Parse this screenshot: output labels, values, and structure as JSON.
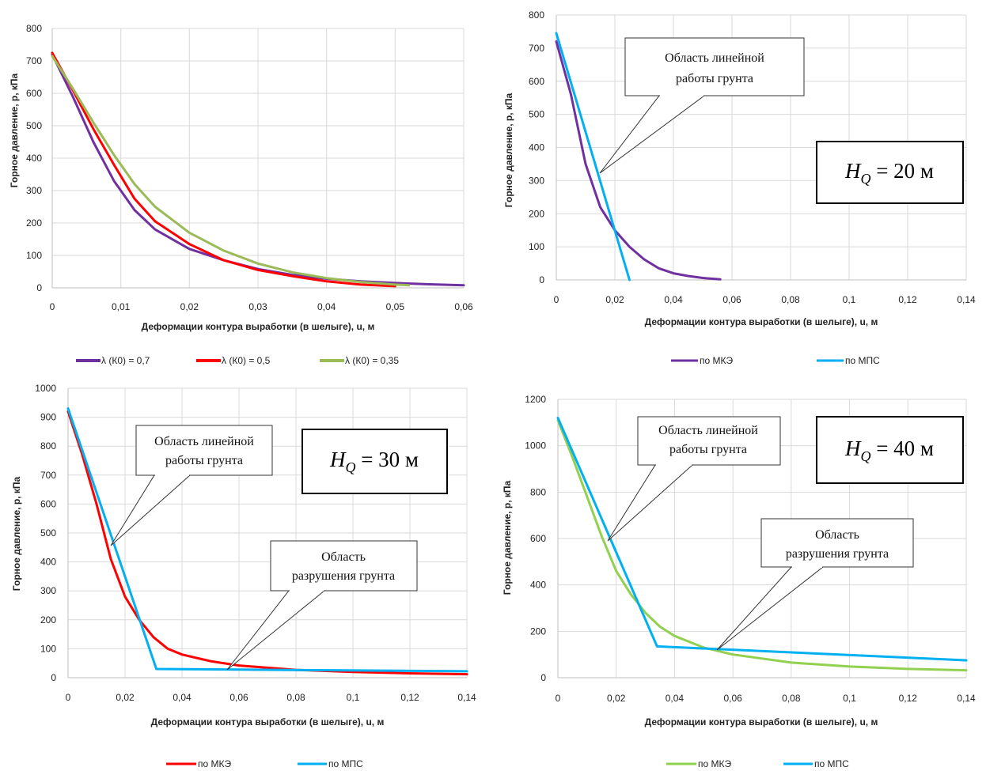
{
  "chart_data": [
    {
      "id": "c1",
      "type": "line",
      "xlabel": "Деформации контура выработки (в шелыге), u, м",
      "ylabel": "Горное давление, р, кПа",
      "xlim": [
        0,
        0.06
      ],
      "ylim": [
        0,
        800
      ],
      "xticks": [
        "0",
        "0,01",
        "0,02",
        "0,03",
        "0,04",
        "0,05",
        "0,06"
      ],
      "yticks": [
        "0",
        "100",
        "200",
        "300",
        "400",
        "500",
        "600",
        "700",
        "800"
      ],
      "xtick_values": [
        0,
        0.01,
        0.02,
        0.03,
        0.04,
        0.05,
        0.06
      ],
      "ytick_values": [
        0,
        100,
        200,
        300,
        400,
        500,
        600,
        700,
        800
      ],
      "grid": true,
      "legend_position": "bottom",
      "series": [
        {
          "name": "λ (К0) = 0,7",
          "color": "#7030a0",
          "x": [
            0,
            0.003,
            0.006,
            0.009,
            0.012,
            0.015,
            0.02,
            0.025,
            0.03,
            0.035,
            0.04,
            0.045,
            0.05,
            0.055,
            0.06
          ],
          "y": [
            720,
            590,
            450,
            330,
            240,
            180,
            120,
            85,
            58,
            40,
            28,
            20,
            15,
            11,
            8
          ]
        },
        {
          "name": "λ (К0) = 0,5",
          "color": "#ff0000",
          "x": [
            0,
            0.003,
            0.006,
            0.009,
            0.012,
            0.015,
            0.02,
            0.025,
            0.03,
            0.035,
            0.04,
            0.045,
            0.05
          ],
          "y": [
            725,
            610,
            490,
            380,
            275,
            205,
            135,
            85,
            55,
            36,
            20,
            10,
            5
          ]
        },
        {
          "name": "λ (К0) = 0,35",
          "color": "#9bbb59",
          "x": [
            0,
            0.003,
            0.006,
            0.009,
            0.012,
            0.015,
            0.02,
            0.025,
            0.03,
            0.035,
            0.04,
            0.045,
            0.05,
            0.052
          ],
          "y": [
            715,
            615,
            510,
            410,
            320,
            250,
            170,
            115,
            75,
            48,
            30,
            18,
            10,
            8
          ]
        }
      ]
    },
    {
      "id": "c2",
      "type": "line",
      "xlabel": "Деформации контура выработки (в шелыге), u, м",
      "ylabel": "Горное давление, р, кПа",
      "xlim": [
        0,
        0.14
      ],
      "ylim": [
        0,
        800
      ],
      "xticks": [
        "0",
        "0,02",
        "0,04",
        "0,06",
        "0,08",
        "0,1",
        "0,12",
        "0,14"
      ],
      "yticks": [
        "0",
        "100",
        "200",
        "300",
        "400",
        "500",
        "600",
        "700",
        "800"
      ],
      "xtick_values": [
        0,
        0.02,
        0.04,
        0.06,
        0.08,
        0.1,
        0.12,
        0.14
      ],
      "ytick_values": [
        0,
        100,
        200,
        300,
        400,
        500,
        600,
        700,
        800
      ],
      "grid": true,
      "legend_position": "bottom",
      "series": [
        {
          "name": "по МКЭ",
          "color": "#7030a0",
          "x": [
            0,
            0.005,
            0.01,
            0.015,
            0.02,
            0.025,
            0.03,
            0.035,
            0.04,
            0.045,
            0.05,
            0.056
          ],
          "y": [
            720,
            560,
            350,
            220,
            150,
            100,
            62,
            35,
            20,
            12,
            6,
            2
          ]
        },
        {
          "name": "по МПС",
          "color": "#00b0f0",
          "x": [
            0,
            0.025
          ],
          "y": [
            745,
            0
          ]
        }
      ],
      "callouts": [
        {
          "lines": [
            "Область линейной",
            "работы грунта"
          ],
          "target": [
            0.0148,
            315
          ]
        }
      ],
      "hq": {
        "prefix": "H",
        "sub": "Q",
        "rest": " = 20 м"
      }
    },
    {
      "id": "c3",
      "type": "line",
      "xlabel": "Деформации контура выработки (в шелыге), u, м",
      "ylabel": "Горное давление, р, кПа",
      "xlim": [
        0,
        0.14
      ],
      "ylim": [
        0,
        1000
      ],
      "xticks": [
        "0",
        "0,02",
        "0,04",
        "0,06",
        "0,08",
        "0,1",
        "0,12",
        "0,14"
      ],
      "yticks": [
        "0",
        "100",
        "200",
        "300",
        "400",
        "500",
        "600",
        "700",
        "800",
        "900",
        "1000"
      ],
      "xtick_values": [
        0,
        0.02,
        0.04,
        0.06,
        0.08,
        0.1,
        0.12,
        0.14
      ],
      "ytick_values": [
        0,
        100,
        200,
        300,
        400,
        500,
        600,
        700,
        800,
        900,
        1000
      ],
      "grid": true,
      "legend_position": "bottom",
      "series": [
        {
          "name": "по МКЭ",
          "color": "#ff0000",
          "x": [
            0,
            0.005,
            0.01,
            0.015,
            0.02,
            0.025,
            0.03,
            0.035,
            0.04,
            0.05,
            0.06,
            0.08,
            0.1,
            0.12,
            0.14
          ],
          "y": [
            920,
            770,
            600,
            410,
            280,
            200,
            140,
            100,
            80,
            57,
            42,
            27,
            20,
            15,
            12
          ]
        },
        {
          "name": "по МПС",
          "color": "#00b0f0",
          "x": [
            0,
            0.031,
            0.14
          ],
          "y": [
            930,
            30,
            22
          ]
        }
      ],
      "callouts": [
        {
          "lines": [
            "Область линейной",
            "работы грунта"
          ],
          "target": [
            0.0145,
            450
          ]
        },
        {
          "lines": [
            "Область",
            "разрушения грунта"
          ],
          "target": [
            0.055,
            28
          ]
        }
      ],
      "hq": {
        "prefix": "H",
        "sub": "Q",
        "rest": " = 30 м"
      }
    },
    {
      "id": "c4",
      "type": "line",
      "xlabel": "Деформации контура выработки (в шелыге), u, м",
      "ylabel": "Горное давление, р, кПа",
      "xlim": [
        0,
        0.14
      ],
      "ylim": [
        0,
        1200
      ],
      "xticks": [
        "0",
        "0,02",
        "0,04",
        "0,06",
        "0,08",
        "0,1",
        "0,12",
        "0,14"
      ],
      "yticks": [
        "0",
        "200",
        "400",
        "600",
        "800",
        "1000",
        "1200"
      ],
      "xtick_values": [
        0,
        0.02,
        0.04,
        0.06,
        0.08,
        0.1,
        0.12,
        0.14
      ],
      "ytick_values": [
        0,
        200,
        400,
        600,
        800,
        1000,
        1200
      ],
      "grid": true,
      "legend_position": "bottom",
      "series": [
        {
          "name": "по МКЭ",
          "color": "#92d050",
          "x": [
            0,
            0.005,
            0.01,
            0.015,
            0.02,
            0.025,
            0.03,
            0.035,
            0.04,
            0.05,
            0.06,
            0.08,
            0.1,
            0.12,
            0.14
          ],
          "y": [
            1110,
            950,
            780,
            610,
            460,
            360,
            280,
            220,
            180,
            130,
            100,
            65,
            48,
            38,
            32
          ]
        },
        {
          "name": "по МПС",
          "color": "#00b0f0",
          "x": [
            0,
            0.034,
            0.14
          ],
          "y": [
            1120,
            135,
            75
          ]
        }
      ],
      "callouts": [
        {
          "lines": [
            "Область линейной",
            "работы грунта"
          ],
          "target": [
            0.017,
            590
          ]
        },
        {
          "lines": [
            "Область",
            "разрушения грунта"
          ],
          "target": [
            0.054,
            115
          ]
        }
      ],
      "hq": {
        "prefix": "H",
        "sub": "Q",
        "rest": " = 40 м"
      }
    }
  ]
}
